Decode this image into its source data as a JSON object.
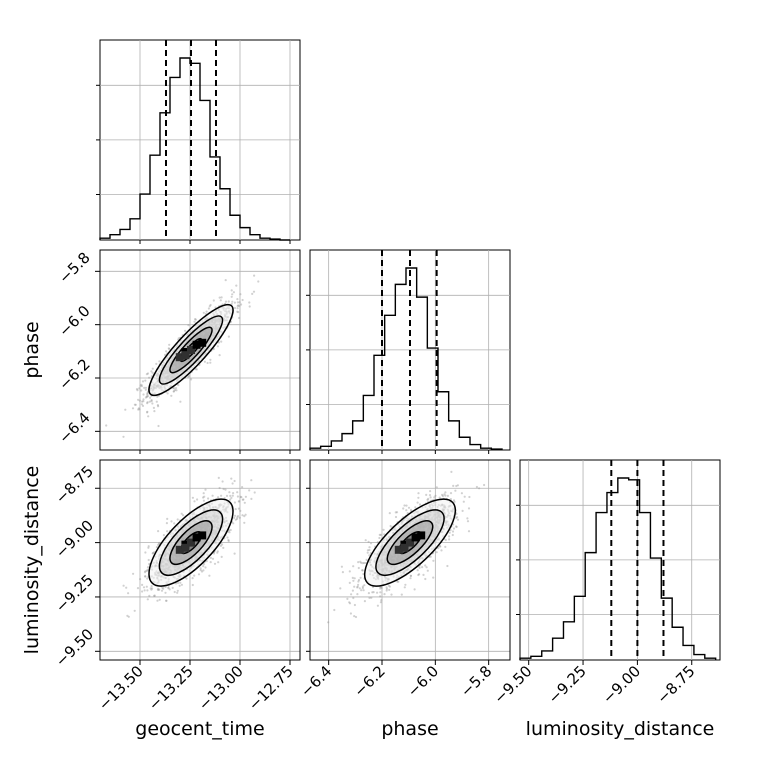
{
  "chart_data": {
    "type": "corner",
    "parameters": [
      {
        "name": "geocent_time",
        "range": [
          -13.7,
          -12.7
        ],
        "ticks": [
          -13.5,
          -13.25,
          -13.0,
          -12.75
        ],
        "tick_labels": [
          "−13.50",
          "−13.25",
          "−13.00",
          "−12.75"
        ],
        "quantiles": [
          -13.37,
          -13.245,
          -13.12
        ],
        "hist_edges": [
          -13.7,
          -13.65,
          -13.6,
          -13.55,
          -13.5,
          -13.45,
          -13.4,
          -13.35,
          -13.3,
          -13.25,
          -13.2,
          -13.15,
          -13.1,
          -13.05,
          -13.0,
          -12.95,
          -12.9,
          -12.85,
          -12.8,
          -12.75
        ],
        "hist_counts": [
          1,
          3,
          6,
          12,
          26,
          48,
          72,
          92,
          103,
          100,
          79,
          47,
          29,
          14,
          7,
          3,
          1,
          0.5,
          0
        ]
      },
      {
        "name": "phase",
        "range": [
          -6.47,
          -5.72
        ],
        "ticks": [
          -6.4,
          -6.2,
          -6.0,
          -5.8
        ],
        "tick_labels": [
          "−6.4",
          "−6.2",
          "−6.0",
          "−5.8"
        ],
        "quantiles": [
          -6.2,
          -6.095,
          -5.995
        ],
        "hist_edges": [
          -6.47,
          -6.43,
          -6.39,
          -6.35,
          -6.31,
          -6.27,
          -6.23,
          -6.19,
          -6.15,
          -6.11,
          -6.07,
          -6.03,
          -5.99,
          -5.95,
          -5.91,
          -5.87,
          -5.83,
          -5.79,
          -5.75
        ],
        "hist_counts": [
          1,
          2,
          5,
          9,
          16,
          30,
          52,
          74,
          91,
          100,
          84,
          56,
          32,
          16,
          7,
          3,
          1,
          0.5
        ]
      },
      {
        "name": "luminosity_distance",
        "range": [
          -9.54,
          -8.62
        ],
        "ticks": [
          -9.5,
          -9.25,
          -9.0,
          -8.75
        ],
        "tick_labels": [
          "−9.50",
          "−9.25",
          "−9.00",
          "−8.75"
        ],
        "quantiles": [
          -9.12,
          -9.0,
          -8.88
        ],
        "hist_edges": [
          -9.54,
          -9.49,
          -9.44,
          -9.39,
          -9.34,
          -9.29,
          -9.24,
          -9.19,
          -9.14,
          -9.09,
          -9.04,
          -8.99,
          -8.94,
          -8.89,
          -8.84,
          -8.79,
          -8.74,
          -8.69,
          -8.64
        ],
        "hist_counts": [
          1,
          2,
          5,
          12,
          21,
          35,
          59,
          81,
          92,
          100,
          99,
          81,
          56,
          34,
          18,
          8,
          3,
          1
        ]
      }
    ],
    "pairs": [
      {
        "x": "geocent_time",
        "y": "phase",
        "center": [
          -13.245,
          -6.095
        ],
        "sd": [
          0.105,
          0.085
        ],
        "correlation": 0.88
      },
      {
        "x": "geocent_time",
        "y": "luminosity_distance",
        "center": [
          -13.245,
          -9.0
        ],
        "sd": [
          0.105,
          0.1
        ],
        "correlation": 0.72
      },
      {
        "x": "phase",
        "y": "luminosity_distance",
        "center": [
          -6.095,
          -9.0
        ],
        "sd": [
          0.085,
          0.1
        ],
        "correlation": 0.74
      }
    ],
    "contour_levels_sigma": [
      0.5,
      1.0,
      1.5,
      2.0
    ],
    "quantile_line_style": "dashed",
    "grid": true,
    "scatter_color": "#9a9a9a",
    "line_color": "#000000"
  }
}
